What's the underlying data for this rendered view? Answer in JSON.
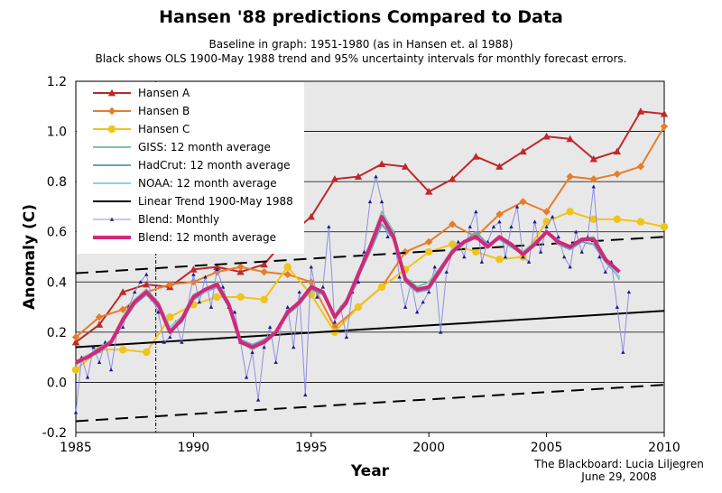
{
  "title": "Hansen '88 predictions Compared to Data",
  "subtitle_1": "Baseline in graph: 1951-1980 (as in  Hansen et. al 1988)",
  "subtitle_2": "Black shows OLS 1900-May 1988 trend and 95% uncertainty intervals for monthly forecast errors.",
  "credit_1": "The Blackboard: Lucia Liljegren",
  "credit_2": "June 29, 2008",
  "chart_data": {
    "type": "line",
    "title": "Hansen '88 predictions Compared to Data",
    "xlabel": "Year",
    "ylabel": "Anomaly (C)",
    "xlim": [
      1985,
      2010
    ],
    "ylim": [
      -0.2,
      1.2
    ],
    "x_ticks": [
      "1985",
      "1990",
      "1995",
      "2000",
      "2005",
      "2010"
    ],
    "y_ticks": [
      "-0.2",
      "0.0",
      "0.2",
      "0.4",
      "0.6",
      "0.8",
      "1.0",
      "1.2"
    ],
    "grid": "horizontal",
    "legend_position": "top-left",
    "background": "#e8e8e8",
    "vertical_marker_year": 1988.4,
    "series": [
      {
        "name": "Hansen A",
        "color": "#c0282a",
        "marker": "triangle",
        "width": 2,
        "x": [
          1985,
          1986,
          1987,
          1988,
          1989,
          1990,
          1991,
          1992,
          1993,
          1994,
          1995,
          1996,
          1997,
          1998,
          1999,
          2000,
          2001,
          2002,
          2003,
          2004,
          2005,
          2006,
          2007,
          2008,
          2009,
          2010
        ],
        "y": [
          0.16,
          0.23,
          0.36,
          0.39,
          0.38,
          0.45,
          0.46,
          0.44,
          0.47,
          0.58,
          0.66,
          0.81,
          0.82,
          0.87,
          0.86,
          0.76,
          0.81,
          0.9,
          0.86,
          0.92,
          0.98,
          0.97,
          0.89,
          0.92,
          1.08,
          1.07
        ]
      },
      {
        "name": "Hansen B",
        "color": "#e87d28",
        "marker": "diamond",
        "width": 2,
        "x": [
          1985,
          1986,
          1987,
          1988,
          1989,
          1990,
          1991,
          1992,
          1993,
          1994,
          1995,
          1996,
          1997,
          1998,
          1999,
          2000,
          2001,
          2002,
          2003,
          2004,
          2005,
          2006,
          2007,
          2008,
          2009,
          2010
        ],
        "y": [
          0.18,
          0.26,
          0.29,
          0.36,
          0.39,
          0.4,
          0.44,
          0.46,
          0.44,
          0.43,
          0.4,
          0.22,
          0.3,
          0.38,
          0.52,
          0.56,
          0.63,
          0.58,
          0.67,
          0.72,
          0.68,
          0.82,
          0.81,
          0.83,
          0.86,
          1.02
        ]
      },
      {
        "name": "Hansen C",
        "color": "#f0c419",
        "marker": "circle",
        "width": 2,
        "x": [
          1985,
          1986,
          1987,
          1988,
          1989,
          1990,
          1991,
          1992,
          1993,
          1994,
          1995,
          1996,
          1997,
          1998,
          1999,
          2000,
          2001,
          2002,
          2003,
          2004,
          2005,
          2006,
          2007,
          2008,
          2009,
          2010
        ],
        "y": [
          0.05,
          0.13,
          0.13,
          0.12,
          0.26,
          0.31,
          0.34,
          0.34,
          0.33,
          0.46,
          0.35,
          0.2,
          0.3,
          0.38,
          0.45,
          0.52,
          0.55,
          0.52,
          0.49,
          0.5,
          0.64,
          0.68,
          0.65,
          0.65,
          0.64,
          0.62
        ]
      },
      {
        "name": "GISS: 12 month average",
        "color": "#7ec4a6",
        "marker": "none",
        "width": 2,
        "x": [
          1985,
          1985.5,
          1986,
          1986.5,
          1987,
          1987.5,
          1988,
          1988.5,
          1989,
          1989.5,
          1990,
          1990.5,
          1991,
          1991.5,
          1992,
          1992.5,
          1993,
          1993.5,
          1994,
          1994.5,
          1995,
          1995.5,
          1996,
          1996.5,
          1997,
          1997.5,
          1998,
          1998.5,
          1999,
          1999.5,
          2000,
          2000.5,
          2001,
          2001.5,
          2002,
          2002.5,
          2003,
          2003.5,
          2004,
          2004.5,
          2005,
          2005.5,
          2006,
          2006.5,
          2007,
          2007.5,
          2008.1
        ],
        "y": [
          0.08,
          0.1,
          0.14,
          0.16,
          0.26,
          0.33,
          0.37,
          0.32,
          0.22,
          0.26,
          0.35,
          0.37,
          0.4,
          0.32,
          0.16,
          0.13,
          0.16,
          0.2,
          0.28,
          0.32,
          0.38,
          0.36,
          0.27,
          0.33,
          0.44,
          0.55,
          0.68,
          0.6,
          0.42,
          0.38,
          0.4,
          0.46,
          0.53,
          0.56,
          0.58,
          0.54,
          0.58,
          0.55,
          0.52,
          0.56,
          0.6,
          0.56,
          0.54,
          0.57,
          0.58,
          0.5,
          0.41
        ]
      },
      {
        "name": "HadCrut: 12 month average",
        "color": "#6aa3bf",
        "marker": "none",
        "width": 2,
        "x": [
          1985,
          1985.5,
          1986,
          1986.5,
          1987,
          1987.5,
          1988,
          1988.5,
          1989,
          1989.5,
          1990,
          1990.5,
          1991,
          1991.5,
          1992,
          1992.5,
          1993,
          1993.5,
          1994,
          1994.5,
          1995,
          1995.5,
          1996,
          1996.5,
          1997,
          1997.5,
          1998,
          1998.5,
          1999,
          1999.5,
          2000,
          2000.5,
          2001,
          2001.5,
          2002,
          2002.5,
          2003,
          2003.5,
          2004,
          2004.5,
          2005,
          2005.5,
          2006,
          2006.5,
          2007,
          2007.5,
          2008.1
        ],
        "y": [
          0.07,
          0.1,
          0.12,
          0.16,
          0.24,
          0.31,
          0.35,
          0.3,
          0.21,
          0.24,
          0.33,
          0.36,
          0.38,
          0.3,
          0.17,
          0.15,
          0.17,
          0.2,
          0.27,
          0.31,
          0.37,
          0.35,
          0.26,
          0.31,
          0.42,
          0.52,
          0.63,
          0.57,
          0.4,
          0.36,
          0.37,
          0.44,
          0.52,
          0.56,
          0.6,
          0.55,
          0.57,
          0.54,
          0.51,
          0.55,
          0.6,
          0.55,
          0.53,
          0.56,
          0.55,
          0.48,
          0.42
        ]
      },
      {
        "name": "NOAA: 12 month average",
        "color": "#8fd0e2",
        "marker": "none",
        "width": 2,
        "x": [
          1985,
          1985.5,
          1986,
          1986.5,
          1987,
          1987.5,
          1988,
          1988.5,
          1989,
          1989.5,
          1990,
          1990.5,
          1991,
          1991.5,
          1992,
          1992.5,
          1993,
          1993.5,
          1994,
          1994.5,
          1995,
          1995.5,
          1996,
          1996.5,
          1997,
          1997.5,
          1998,
          1998.5,
          1999,
          1999.5,
          2000,
          2000.5,
          2001,
          2001.5,
          2002,
          2002.5,
          2003,
          2003.5,
          2004,
          2004.5,
          2005,
          2005.5,
          2006,
          2006.5,
          2007,
          2007.5,
          2008.1
        ],
        "y": [
          0.08,
          0.11,
          0.13,
          0.17,
          0.25,
          0.32,
          0.36,
          0.31,
          0.22,
          0.25,
          0.34,
          0.36,
          0.39,
          0.31,
          0.16,
          0.14,
          0.16,
          0.2,
          0.28,
          0.32,
          0.38,
          0.36,
          0.27,
          0.32,
          0.43,
          0.54,
          0.66,
          0.58,
          0.41,
          0.37,
          0.38,
          0.45,
          0.52,
          0.55,
          0.58,
          0.54,
          0.58,
          0.55,
          0.51,
          0.55,
          0.6,
          0.56,
          0.54,
          0.57,
          0.57,
          0.49,
          0.42
        ]
      },
      {
        "name": "Linear Trend 1900-May 1988",
        "color": "#000000",
        "marker": "none",
        "width": 2,
        "x": [
          1985,
          2010
        ],
        "y": [
          0.14,
          0.285
        ]
      },
      {
        "name": "95% upper bound",
        "color": "#000000",
        "marker": "none",
        "dashed": true,
        "width": 2,
        "x": [
          1985,
          2010
        ],
        "y": [
          0.435,
          0.58
        ]
      },
      {
        "name": "95% lower bound",
        "color": "#000000",
        "marker": "none",
        "dashed": true,
        "width": 2,
        "x": [
          1985,
          2010
        ],
        "y": [
          -0.155,
          -0.01
        ]
      },
      {
        "name": "Blend: Monthly",
        "color": "#8f8fe0",
        "marker": "small-triangle",
        "width": 1,
        "x": [
          1985,
          1985.25,
          1985.5,
          1985.75,
          1986,
          1986.25,
          1986.5,
          1986.75,
          1987,
          1987.25,
          1987.5,
          1987.75,
          1988,
          1988.25,
          1988.5,
          1988.75,
          1989,
          1989.25,
          1989.5,
          1989.75,
          1990,
          1990.25,
          1990.5,
          1990.75,
          1991,
          1991.25,
          1991.5,
          1991.75,
          1992,
          1992.25,
          1992.5,
          1992.75,
          1993,
          1993.25,
          1993.5,
          1993.75,
          1994,
          1994.25,
          1994.5,
          1994.75,
          1995,
          1995.25,
          1995.5,
          1995.75,
          1996,
          1996.25,
          1996.5,
          1996.75,
          1997,
          1997.25,
          1997.5,
          1997.75,
          1998,
          1998.25,
          1998.5,
          1998.75,
          1999,
          1999.25,
          1999.5,
          1999.75,
          2000,
          2000.25,
          2000.5,
          2000.75,
          2001,
          2001.25,
          2001.5,
          2001.75,
          2002,
          2002.25,
          2002.5,
          2002.75,
          2003,
          2003.25,
          2003.5,
          2003.75,
          2004,
          2004.25,
          2004.5,
          2004.75,
          2005,
          2005.25,
          2005.5,
          2005.75,
          2006,
          2006.25,
          2006.5,
          2006.75,
          2007,
          2007.25,
          2007.5,
          2007.75,
          2008,
          2008.25,
          2008.5
        ],
        "y": [
          -0.12,
          0.1,
          0.02,
          0.14,
          0.08,
          0.16,
          0.05,
          0.2,
          0.22,
          0.3,
          0.36,
          0.4,
          0.43,
          0.33,
          0.28,
          0.16,
          0.18,
          0.24,
          0.16,
          0.3,
          0.43,
          0.32,
          0.42,
          0.3,
          0.45,
          0.38,
          0.3,
          0.28,
          0.16,
          0.02,
          0.12,
          -0.07,
          0.14,
          0.22,
          0.08,
          0.24,
          0.3,
          0.14,
          0.36,
          -0.05,
          0.46,
          0.34,
          0.38,
          0.62,
          0.24,
          0.3,
          0.18,
          0.36,
          0.4,
          0.52,
          0.72,
          0.82,
          0.72,
          0.58,
          0.6,
          0.42,
          0.3,
          0.4,
          0.28,
          0.32,
          0.36,
          0.46,
          0.2,
          0.44,
          0.52,
          0.56,
          0.5,
          0.62,
          0.68,
          0.48,
          0.56,
          0.62,
          0.64,
          0.5,
          0.62,
          0.7,
          0.5,
          0.48,
          0.64,
          0.52,
          0.62,
          0.66,
          0.58,
          0.5,
          0.46,
          0.6,
          0.52,
          0.58,
          0.78,
          0.5,
          0.44,
          0.48,
          0.3,
          0.12,
          0.36
        ]
      },
      {
        "name": "Blend: 12 month average",
        "color": "#d1287a",
        "marker": "none",
        "width": 4,
        "x": [
          1985,
          1985.5,
          1986,
          1986.5,
          1987,
          1987.5,
          1988,
          1988.5,
          1989,
          1989.5,
          1990,
          1990.5,
          1991,
          1991.5,
          1992,
          1992.5,
          1993,
          1993.5,
          1994,
          1994.5,
          1995,
          1995.5,
          1996,
          1996.5,
          1997,
          1997.5,
          1998,
          1998.5,
          1999,
          1999.5,
          2000,
          2000.5,
          2001,
          2001.5,
          2002,
          2002.5,
          2003,
          2003.5,
          2004,
          2004.5,
          2005,
          2005.5,
          2006,
          2006.5,
          2007,
          2007.5,
          2008.1
        ],
        "y": [
          0.08,
          0.1,
          0.13,
          0.16,
          0.25,
          0.32,
          0.36,
          0.31,
          0.2,
          0.25,
          0.34,
          0.37,
          0.39,
          0.31,
          0.16,
          0.14,
          0.16,
          0.2,
          0.28,
          0.32,
          0.38,
          0.36,
          0.26,
          0.32,
          0.43,
          0.54,
          0.66,
          0.58,
          0.41,
          0.37,
          0.38,
          0.45,
          0.52,
          0.56,
          0.58,
          0.54,
          0.58,
          0.55,
          0.51,
          0.55,
          0.6,
          0.56,
          0.54,
          0.57,
          0.57,
          0.49,
          0.44
        ]
      }
    ]
  }
}
